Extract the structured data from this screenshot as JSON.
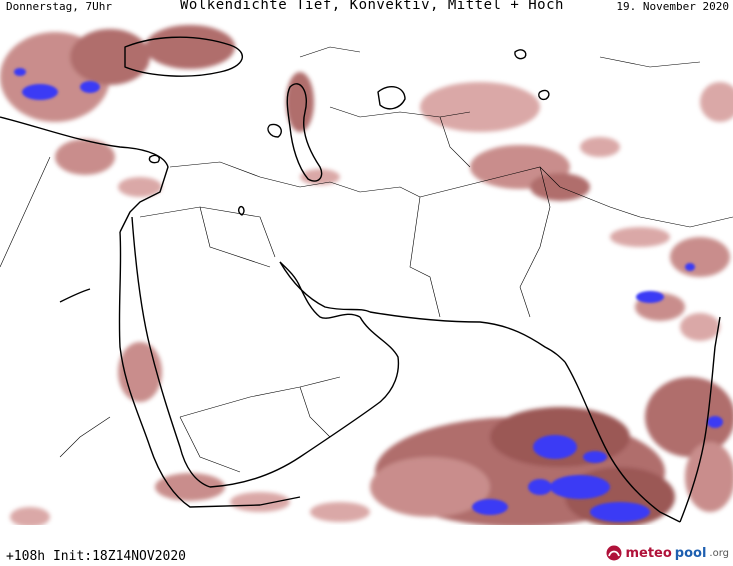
{
  "header": {
    "left": "Donnerstag, 7Uhr",
    "title": "Wolkendichte  Tief, Konvektiv, Mittel + Hoch",
    "right": "19. November 2020"
  },
  "footer": {
    "run_info": "+108h  Init:18Z14NOV2020",
    "logo_part1": "meteo",
    "logo_part2": "pool",
    "logo_part3": ".org"
  },
  "legend_colors": {
    "cloud_light": "#e8c4c4",
    "cloud_mid": "#c07a78",
    "cloud_dense": "#8a3a38",
    "cloud_convective": "#3b3bf5"
  },
  "map_region": "Middle East / Arabian Peninsula / South Asia"
}
